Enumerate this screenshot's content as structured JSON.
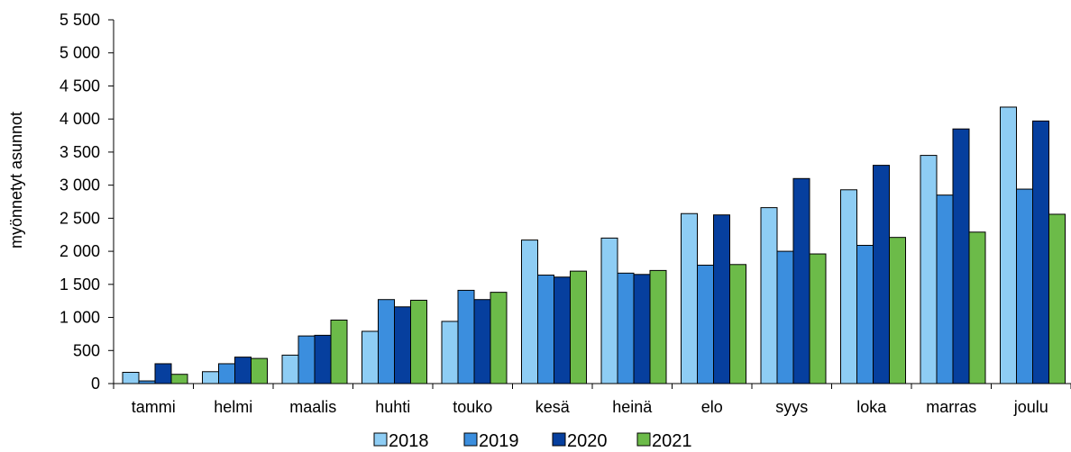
{
  "chart_data": {
    "type": "bar",
    "ylabel": "myönnetyt asunnot",
    "ylim": [
      0,
      5500
    ],
    "ytick_step": 500,
    "ytick_labels": [
      "0",
      "500",
      "1 000",
      "1 500",
      "2 000",
      "2 500",
      "3 000",
      "3 500",
      "4 000",
      "4 500",
      "5 000",
      "5 500"
    ],
    "grid": false,
    "legend_position": "bottom",
    "categories": [
      "tammi",
      "helmi",
      "maalis",
      "huhti",
      "touko",
      "kesä",
      "heinä",
      "elo",
      "syys",
      "loka",
      "marras",
      "joulu"
    ],
    "series": [
      {
        "name": "2018",
        "color": "#8ecdf4",
        "values": [
          170,
          180,
          430,
          790,
          940,
          2170,
          2200,
          2570,
          2660,
          2930,
          3450,
          4180
        ]
      },
      {
        "name": "2019",
        "color": "#3b8ede",
        "values": [
          40,
          300,
          720,
          1270,
          1410,
          1640,
          1670,
          1790,
          2000,
          2090,
          2850,
          2940
        ]
      },
      {
        "name": "2020",
        "color": "#063f9e",
        "values": [
          300,
          400,
          730,
          1160,
          1270,
          1610,
          1650,
          2550,
          3100,
          3300,
          3850,
          3970
        ]
      },
      {
        "name": "2021",
        "color": "#6cbb49",
        "values": [
          140,
          380,
          960,
          1260,
          1380,
          1700,
          1710,
          1800,
          1960,
          2210,
          2290,
          2560
        ]
      }
    ]
  }
}
